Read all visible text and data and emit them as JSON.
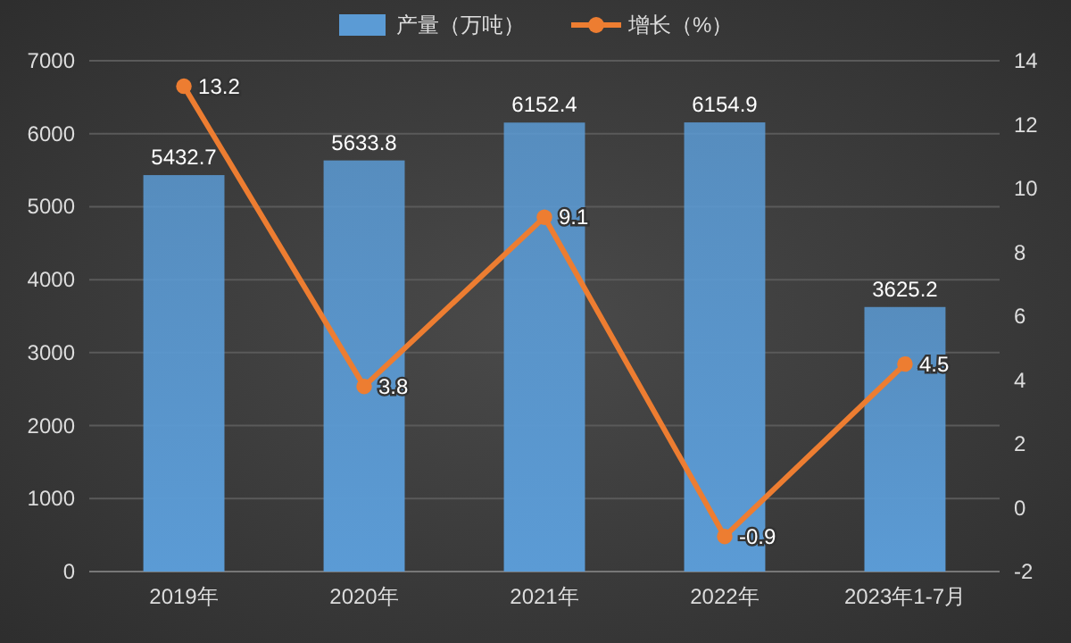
{
  "chart_data": {
    "type": "bar",
    "categories": [
      "2019年",
      "2020年",
      "2021年",
      "2022年",
      "2023年1-7月"
    ],
    "series": [
      {
        "name": "产量（万吨）",
        "color": "#5b9bd5",
        "values": [
          5432.7,
          5633.8,
          6152.4,
          6154.9,
          3625.2
        ]
      },
      {
        "name": "增长（%）",
        "type": "line",
        "axis": "y2",
        "color": "#ed7d31",
        "values": [
          13.2,
          3.8,
          9.1,
          -0.9,
          4.5
        ]
      }
    ],
    "ylim": [
      0,
      7000
    ],
    "yticks": [
      0,
      1000,
      2000,
      3000,
      4000,
      5000,
      6000,
      7000
    ],
    "y2lim": [
      -2,
      14
    ],
    "y2ticks": [
      -2,
      0,
      2,
      4,
      6,
      8,
      10,
      12,
      14
    ],
    "grid": "y",
    "legend": "top",
    "marker": "circle",
    "data_labels": true
  }
}
